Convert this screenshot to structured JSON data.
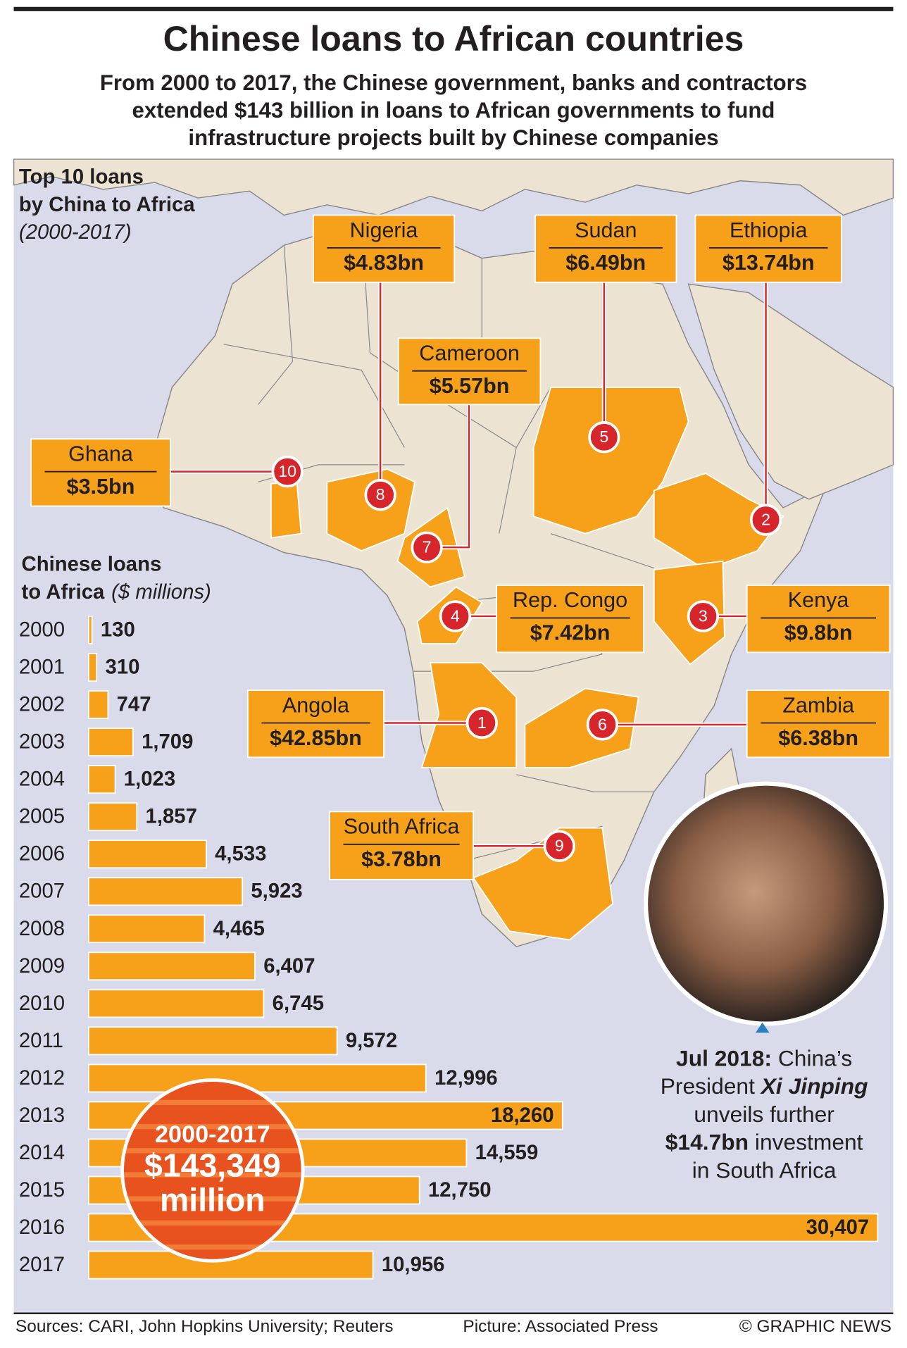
{
  "header": {
    "title": "Chinese loans to African countries",
    "subtitle_lines": [
      "From 2000 to 2017, the Chinese government, banks and contractors",
      "extended $143 billion in loans to African governments to fund",
      "infrastructure projects built by Chinese companies"
    ]
  },
  "top_loans": {
    "title_lines": [
      "Top 10 loans",
      "by China to Africa"
    ],
    "period": "(2000-2017)",
    "items": [
      {
        "rank": 1,
        "country": "Angola",
        "amount": "$42.85bn"
      },
      {
        "rank": 2,
        "country": "Ethiopia",
        "amount": "$13.74bn"
      },
      {
        "rank": 3,
        "country": "Kenya",
        "amount": "$9.8bn"
      },
      {
        "rank": 4,
        "country": "Rep. Congo",
        "amount": "$7.42bn"
      },
      {
        "rank": 5,
        "country": "Sudan",
        "amount": "$6.49bn"
      },
      {
        "rank": 6,
        "country": "Zambia",
        "amount": "$6.38bn"
      },
      {
        "rank": 7,
        "country": "Cameroon",
        "amount": "$5.57bn"
      },
      {
        "rank": 8,
        "country": "Nigeria",
        "amount": "$4.83bn"
      },
      {
        "rank": 9,
        "country": "South Africa",
        "amount": "$3.78bn"
      },
      {
        "rank": 10,
        "country": "Ghana",
        "amount": "$3.5bn"
      }
    ]
  },
  "chart_data": {
    "type": "bar",
    "orientation": "horizontal",
    "title_lines": [
      "Chinese loans",
      "to Africa"
    ],
    "unit": "($ millions)",
    "categories": [
      "2000",
      "2001",
      "2002",
      "2003",
      "2004",
      "2005",
      "2006",
      "2007",
      "2008",
      "2009",
      "2010",
      "2011",
      "2012",
      "2013",
      "2014",
      "2015",
      "2016",
      "2017"
    ],
    "values": [
      130,
      310,
      747,
      1709,
      1023,
      1857,
      4533,
      5923,
      4465,
      6407,
      6745,
      9572,
      12996,
      18260,
      14559,
      12750,
      30407,
      10956
    ],
    "value_labels": [
      "130",
      "310",
      "747",
      "1,709",
      "1,023",
      "1,857",
      "4,533",
      "5,923",
      "4,465",
      "6,407",
      "6,745",
      "9,572",
      "12,996",
      "18,260",
      "14,559",
      "12,750",
      "30,407",
      "10,956"
    ],
    "xlim": [
      0,
      30500
    ],
    "color": "#f7a11a",
    "total": {
      "period": "2000-2017",
      "amount": "$143,349",
      "unit": "million"
    }
  },
  "photo_caption": {
    "lines": [
      [
        {
          "text": "Jul 2018:",
          "style": "bold"
        },
        {
          "text": " China’s",
          "style": "normal"
        }
      ],
      [
        {
          "text": "President ",
          "style": "normal"
        },
        {
          "text": "Xi Jinping",
          "style": "bold-italic"
        }
      ],
      [
        {
          "text": "unveils further",
          "style": "normal"
        }
      ],
      [
        {
          "text": "$14.7bn",
          "style": "bold"
        },
        {
          "text": " investment",
          "style": "normal"
        }
      ],
      [
        {
          "text": "in South Africa",
          "style": "normal"
        }
      ]
    ]
  },
  "footer": {
    "sources": "Sources: CARI, John Hopkins University; Reuters",
    "picture": "Picture: Associated Press",
    "credit": "© GRAPHIC NEWS"
  }
}
